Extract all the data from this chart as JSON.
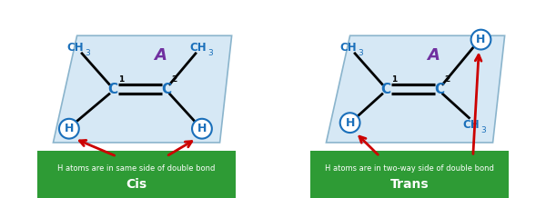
{
  "bg_color": "#ffffff",
  "parallelogram_color": "#d6e8f5",
  "parallelogram_edge": "#8ab4cc",
  "bond_color": "#000000",
  "ch3_color": "#1a6fba",
  "h_color": "#1a6fba",
  "c_color": "#1a6fba",
  "label_color": "#7030a0",
  "arrow_color": "#cc0000",
  "green_box_color": "#2e9b35",
  "green_text_color": "#ffffff",
  "cis_label1": "H atoms are in same side of double bond",
  "cis_label2": "Cis",
  "trans_label1": "H atoms are in two-way side of double bond",
  "trans_label2": "Trans",
  "plane_label": "A"
}
